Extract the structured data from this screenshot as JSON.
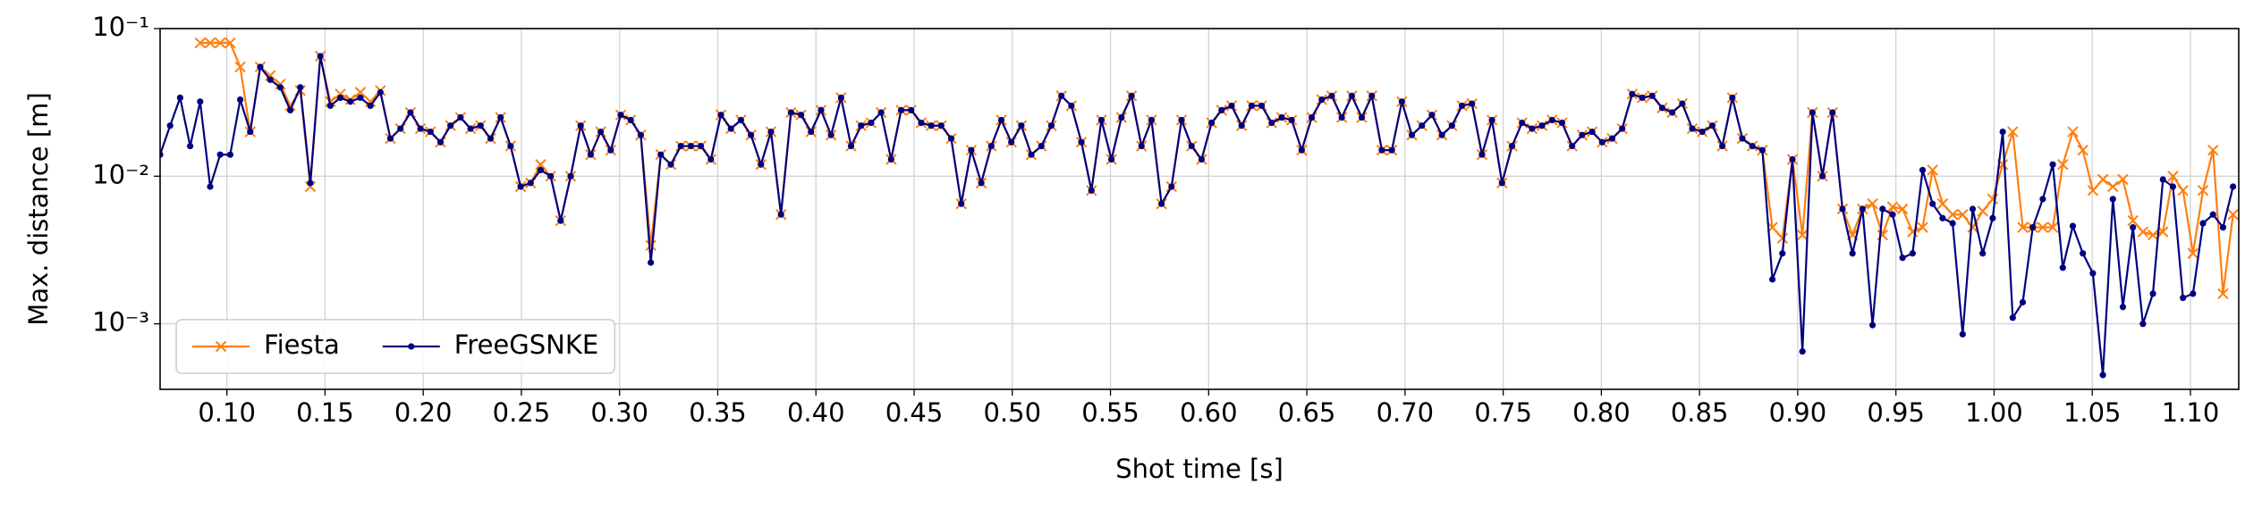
{
  "chart_data": {
    "type": "line",
    "xlabel": "Shot time [s]",
    "ylabel": "Max. distance [m]",
    "yscale": "log",
    "grid": true,
    "legend": "lower left",
    "xlim": [
      0.066,
      1.1246
    ],
    "ylim": [
      0.00036,
      0.1
    ],
    "xticks": [
      {
        "value": 0.1,
        "label": "0.10"
      },
      {
        "value": 0.15,
        "label": "0.15"
      },
      {
        "value": 0.2,
        "label": "0.20"
      },
      {
        "value": 0.25,
        "label": "0.25"
      },
      {
        "value": 0.3,
        "label": "0.30"
      },
      {
        "value": 0.35,
        "label": "0.35"
      },
      {
        "value": 0.4,
        "label": "0.40"
      },
      {
        "value": 0.45,
        "label": "0.45"
      },
      {
        "value": 0.5,
        "label": "0.50"
      },
      {
        "value": 0.55,
        "label": "0.55"
      },
      {
        "value": 0.6,
        "label": "0.60"
      },
      {
        "value": 0.65,
        "label": "0.65"
      },
      {
        "value": 0.7,
        "label": "0.70"
      },
      {
        "value": 0.75,
        "label": "0.75"
      },
      {
        "value": 0.8,
        "label": "0.80"
      },
      {
        "value": 0.85,
        "label": "0.85"
      },
      {
        "value": 0.9,
        "label": "0.90"
      },
      {
        "value": 0.95,
        "label": "0.95"
      },
      {
        "value": 1.0,
        "label": "1.00"
      },
      {
        "value": 1.05,
        "label": "1.05"
      },
      {
        "value": 1.1,
        "label": "1.10"
      }
    ],
    "yticks": [
      {
        "value": 0.001,
        "label": "10⁻³"
      },
      {
        "value": 0.01,
        "label": "10⁻²"
      },
      {
        "value": 0.1,
        "label": "10⁻¹"
      }
    ],
    "x": [
      0.066,
      0.0711,
      0.0762,
      0.0813,
      0.0864,
      0.0915,
      0.0966,
      0.1017,
      0.1068,
      0.1119,
      0.117,
      0.1221,
      0.1272,
      0.1323,
      0.1374,
      0.1425,
      0.1476,
      0.1527,
      0.1578,
      0.1629,
      0.168,
      0.1731,
      0.1782,
      0.1833,
      0.1884,
      0.1935,
      0.1986,
      0.2037,
      0.2088,
      0.2139,
      0.219,
      0.2241,
      0.2292,
      0.2343,
      0.2394,
      0.2445,
      0.2496,
      0.2547,
      0.2598,
      0.2649,
      0.27,
      0.2751,
      0.2802,
      0.2853,
      0.2904,
      0.2955,
      0.3006,
      0.3057,
      0.3108,
      0.3159,
      0.321,
      0.3261,
      0.3312,
      0.3363,
      0.3414,
      0.3465,
      0.3516,
      0.3567,
      0.3618,
      0.3669,
      0.372,
      0.3771,
      0.3822,
      0.3873,
      0.3924,
      0.3975,
      0.4026,
      0.4077,
      0.4128,
      0.4179,
      0.423,
      0.4281,
      0.4332,
      0.4383,
      0.4434,
      0.4485,
      0.4536,
      0.4587,
      0.4638,
      0.4689,
      0.474,
      0.4791,
      0.4842,
      0.4893,
      0.4944,
      0.4995,
      0.5046,
      0.5097,
      0.5148,
      0.5199,
      0.525,
      0.5301,
      0.5352,
      0.5403,
      0.5454,
      0.5505,
      0.5556,
      0.5607,
      0.5658,
      0.5709,
      0.576,
      0.5811,
      0.5862,
      0.5913,
      0.5964,
      0.6015,
      0.6066,
      0.6117,
      0.6168,
      0.6219,
      0.627,
      0.6321,
      0.6372,
      0.6423,
      0.6474,
      0.6525,
      0.6576,
      0.6627,
      0.6678,
      0.6729,
      0.678,
      0.6831,
      0.6882,
      0.6933,
      0.6984,
      0.7035,
      0.7086,
      0.7137,
      0.7188,
      0.7239,
      0.729,
      0.7341,
      0.7392,
      0.7443,
      0.7494,
      0.7545,
      0.7596,
      0.7647,
      0.7698,
      0.7749,
      0.78,
      0.7851,
      0.7902,
      0.7953,
      0.8004,
      0.8055,
      0.8106,
      0.8157,
      0.8208,
      0.8259,
      0.831,
      0.8361,
      0.8412,
      0.8463,
      0.8514,
      0.8565,
      0.8616,
      0.8667,
      0.8718,
      0.8769,
      0.882,
      0.8871,
      0.8922,
      0.8973,
      0.9024,
      0.9075,
      0.9126,
      0.9177,
      0.9228,
      0.9279,
      0.933,
      0.9381,
      0.9432,
      0.9483,
      0.9534,
      0.9585,
      0.9636,
      0.9687,
      0.9738,
      0.9789,
      0.984,
      0.9891,
      0.9942,
      0.9993,
      1.0044,
      1.0095,
      1.0146,
      1.0197,
      1.0248,
      1.0299,
      1.035,
      1.0401,
      1.0452,
      1.0503,
      1.0554,
      1.0605,
      1.0656,
      1.0707,
      1.0758,
      1.0809,
      1.086,
      1.0911,
      1.0962,
      1.1013,
      1.1064,
      1.1115,
      1.1166,
      1.1217
    ],
    "series": [
      {
        "name": "Fiesta",
        "color": "#ff7f0e",
        "marker": "x",
        "values": [
          null,
          null,
          null,
          null,
          0.08,
          0.08,
          0.08,
          0.08,
          0.055,
          0.02,
          0.055,
          0.048,
          0.042,
          0.03,
          0.038,
          0.0085,
          0.065,
          0.032,
          0.036,
          0.033,
          0.037,
          0.032,
          0.038,
          0.018,
          0.021,
          0.027,
          0.021,
          0.02,
          0.017,
          0.022,
          0.025,
          0.021,
          0.022,
          0.018,
          0.025,
          0.016,
          0.0085,
          0.009,
          0.012,
          0.01,
          0.005,
          0.01,
          0.022,
          0.014,
          0.02,
          0.015,
          0.026,
          0.024,
          0.019,
          0.0034,
          0.014,
          0.012,
          0.016,
          0.016,
          0.016,
          0.013,
          0.026,
          0.021,
          0.024,
          0.019,
          0.012,
          0.02,
          0.0055,
          0.027,
          0.026,
          0.02,
          0.028,
          0.019,
          0.034,
          0.016,
          0.022,
          0.023,
          0.027,
          0.013,
          0.028,
          0.028,
          0.023,
          0.022,
          0.022,
          0.018,
          0.0065,
          0.015,
          0.009,
          0.016,
          0.024,
          0.017,
          0.022,
          0.014,
          0.016,
          0.022,
          0.035,
          0.03,
          0.017,
          0.008,
          0.024,
          0.013,
          0.025,
          0.035,
          0.016,
          0.024,
          0.0065,
          0.0085,
          0.024,
          0.016,
          0.013,
          0.023,
          0.028,
          0.03,
          0.022,
          0.03,
          0.03,
          0.023,
          0.025,
          0.024,
          0.015,
          0.025,
          0.033,
          0.035,
          0.025,
          0.035,
          0.025,
          0.035,
          0.015,
          0.015,
          0.032,
          0.019,
          0.022,
          0.026,
          0.019,
          0.022,
          0.03,
          0.031,
          0.014,
          0.024,
          0.009,
          0.016,
          0.023,
          0.021,
          0.022,
          0.024,
          0.023,
          0.016,
          0.019,
          0.02,
          0.017,
          0.018,
          0.021,
          0.036,
          0.034,
          0.035,
          0.029,
          0.027,
          0.031,
          0.021,
          0.02,
          0.022,
          0.016,
          0.034,
          0.018,
          0.016,
          0.015,
          0.0045,
          0.0038,
          0.013,
          0.004,
          0.027,
          0.01,
          0.027,
          0.006,
          0.004,
          0.006,
          0.0065,
          0.004,
          0.0062,
          0.006,
          0.0042,
          0.0045,
          0.011,
          0.0065,
          0.0055,
          0.0055,
          0.0045,
          0.0058,
          0.007,
          0.012,
          0.02,
          0.0045,
          0.0045,
          0.0045,
          0.0045,
          0.012,
          0.02,
          0.015,
          0.008,
          0.0095,
          0.0085,
          0.0095,
          0.005,
          0.0042,
          0.004,
          0.0042,
          0.01,
          0.008,
          0.003,
          0.008,
          0.015,
          0.0016,
          0.0055
        ]
      },
      {
        "name": "FreeGSNKE",
        "color": "#000080",
        "marker": "o",
        "values": [
          0.014,
          0.022,
          0.034,
          0.016,
          0.032,
          0.0085,
          0.014,
          0.014,
          0.033,
          0.02,
          0.055,
          0.045,
          0.04,
          0.028,
          0.04,
          0.009,
          0.065,
          0.03,
          0.034,
          0.032,
          0.034,
          0.03,
          0.037,
          0.018,
          0.021,
          0.027,
          0.021,
          0.02,
          0.017,
          0.022,
          0.025,
          0.021,
          0.022,
          0.018,
          0.025,
          0.016,
          0.0085,
          0.009,
          0.011,
          0.01,
          0.005,
          0.01,
          0.022,
          0.014,
          0.02,
          0.015,
          0.026,
          0.024,
          0.019,
          0.0026,
          0.014,
          0.012,
          0.016,
          0.016,
          0.016,
          0.013,
          0.026,
          0.021,
          0.024,
          0.019,
          0.012,
          0.02,
          0.0055,
          0.027,
          0.026,
          0.02,
          0.028,
          0.019,
          0.034,
          0.016,
          0.022,
          0.023,
          0.027,
          0.013,
          0.028,
          0.028,
          0.023,
          0.022,
          0.022,
          0.018,
          0.0065,
          0.015,
          0.009,
          0.016,
          0.024,
          0.017,
          0.022,
          0.014,
          0.016,
          0.022,
          0.035,
          0.03,
          0.017,
          0.008,
          0.024,
          0.013,
          0.025,
          0.035,
          0.016,
          0.024,
          0.0065,
          0.0085,
          0.024,
          0.016,
          0.013,
          0.023,
          0.028,
          0.03,
          0.022,
          0.03,
          0.03,
          0.023,
          0.025,
          0.024,
          0.015,
          0.025,
          0.033,
          0.035,
          0.025,
          0.035,
          0.025,
          0.035,
          0.015,
          0.015,
          0.032,
          0.019,
          0.022,
          0.026,
          0.019,
          0.022,
          0.03,
          0.031,
          0.014,
          0.024,
          0.009,
          0.016,
          0.023,
          0.021,
          0.022,
          0.024,
          0.023,
          0.016,
          0.019,
          0.02,
          0.017,
          0.018,
          0.021,
          0.036,
          0.034,
          0.035,
          0.029,
          0.027,
          0.031,
          0.021,
          0.02,
          0.022,
          0.016,
          0.034,
          0.018,
          0.016,
          0.015,
          0.002,
          0.003,
          0.013,
          0.00065,
          0.027,
          0.01,
          0.027,
          0.006,
          0.003,
          0.006,
          0.00098,
          0.006,
          0.0055,
          0.0028,
          0.003,
          0.011,
          0.0065,
          0.0052,
          0.0048,
          0.00085,
          0.006,
          0.003,
          0.0052,
          0.02,
          0.0011,
          0.0014,
          0.0045,
          0.007,
          0.012,
          0.0024,
          0.0046,
          0.003,
          0.0022,
          0.00045,
          0.007,
          0.0013,
          0.0045,
          0.001,
          0.0016,
          0.0095,
          0.0085,
          0.0015,
          0.0016,
          0.0048,
          0.0055,
          0.0045,
          0.0085
        ]
      }
    ]
  }
}
